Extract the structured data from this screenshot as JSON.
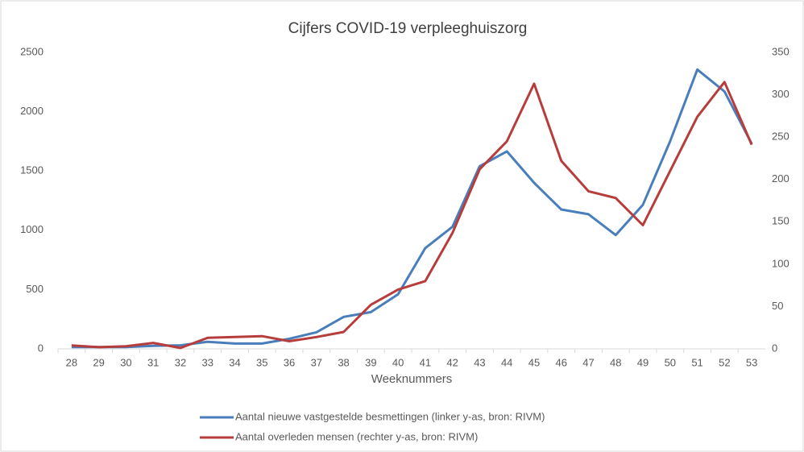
{
  "chart_data": {
    "type": "line",
    "title": "Cijfers COVID-19 verpleeghuiszorg",
    "x_label": "Weeknummers",
    "categories": [
      "28",
      "29",
      "30",
      "31",
      "32",
      "33",
      "34",
      "35",
      "36",
      "37",
      "38",
      "39",
      "40",
      "41",
      "42",
      "43",
      "44",
      "45",
      "46",
      "47",
      "48",
      "49",
      "50",
      "51",
      "52",
      "53"
    ],
    "series": [
      {
        "name": "Aantal nieuwe vastgestelde besmettingen (linker y-as, bron: RIVM)",
        "color": "#4a7ebb",
        "axis": "y",
        "values": [
          15,
          15,
          15,
          25,
          30,
          60,
          45,
          45,
          85,
          140,
          270,
          310,
          460,
          850,
          1030,
          1540,
          1665,
          1400,
          1175,
          1135,
          960,
          1215,
          1750,
          2355,
          2170,
          1730
        ]
      },
      {
        "name": "Aantal overleden mensen (rechter y-as, bron: RIVM)",
        "color": "#b73d3d",
        "axis": "y2",
        "values": [
          4,
          2,
          3,
          7,
          1,
          13,
          14,
          15,
          9,
          14,
          20,
          52,
          70,
          80,
          137,
          212,
          245,
          313,
          222,
          186,
          178,
          146,
          210,
          274,
          315,
          241
        ]
      }
    ],
    "ylim": [
      0,
      2500
    ],
    "yticks": [
      0,
      500,
      1000,
      1500,
      2000,
      2500
    ],
    "y2lim": [
      0,
      350
    ],
    "y2ticks": [
      0,
      50,
      100,
      150,
      200,
      250,
      300,
      350
    ],
    "grid": false,
    "legend": "bottom"
  }
}
